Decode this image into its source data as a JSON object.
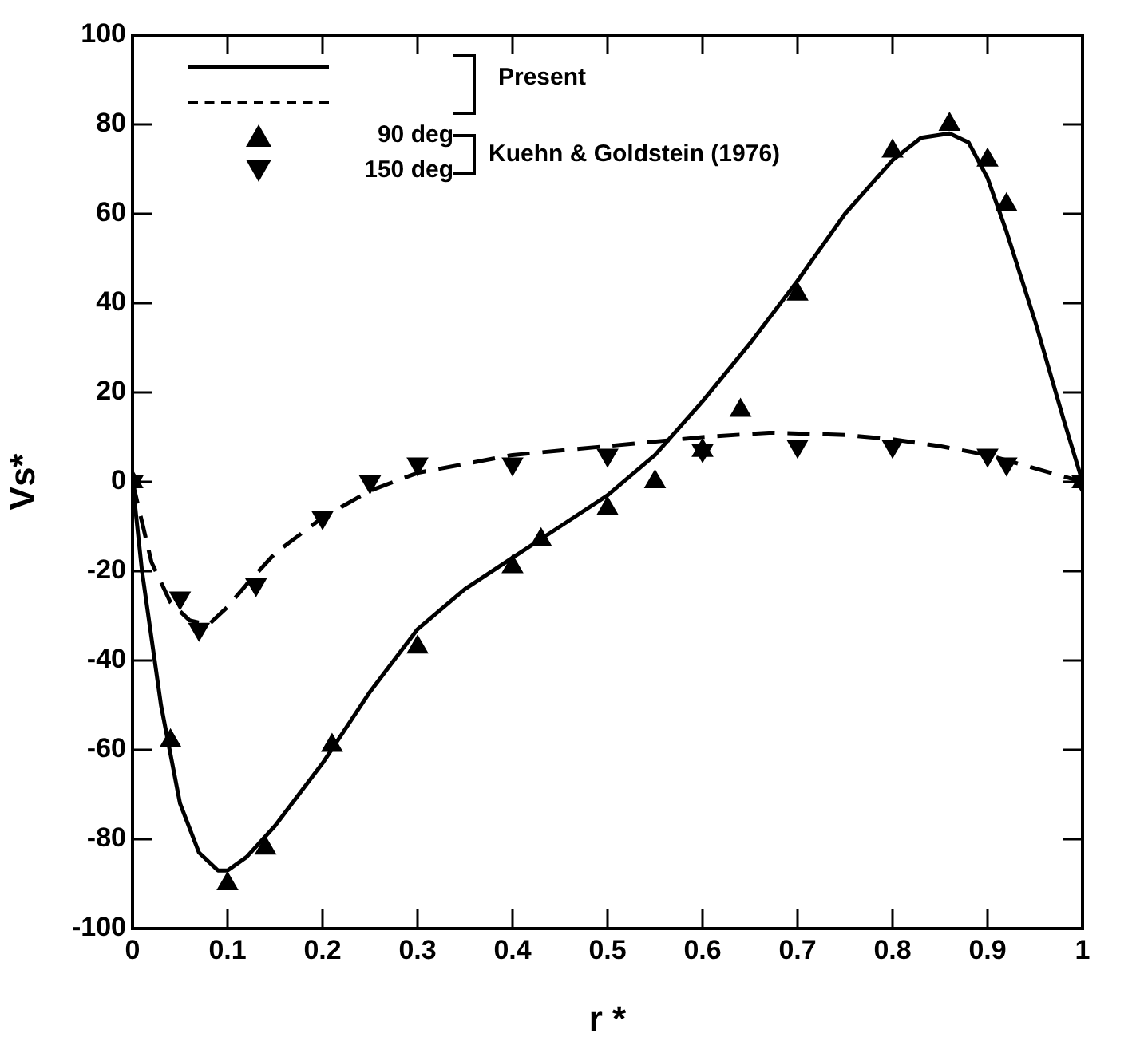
{
  "chart_data": {
    "type": "line",
    "xlabel": "r *",
    "ylabel": "Vs*",
    "xlim": [
      0,
      1
    ],
    "ylim": [
      -100,
      100
    ],
    "xticks": [
      0,
      0.1,
      0.2,
      0.3,
      0.4,
      0.5,
      0.6,
      0.7,
      0.8,
      0.9,
      1
    ],
    "yticks": [
      -100,
      -80,
      -60,
      -40,
      -20,
      0,
      20,
      40,
      60,
      80,
      100
    ],
    "grid": false,
    "legend": "top left",
    "annotations": [
      "Present",
      "Kuehn & Goldstein (1976)"
    ],
    "series": [
      {
        "line_style": "solid",
        "marker": "none",
        "color": "#000000",
        "x": [
          0,
          0.01,
          0.03,
          0.05,
          0.07,
          0.09,
          0.1,
          0.12,
          0.15,
          0.2,
          0.25,
          0.3,
          0.35,
          0.4,
          0.45,
          0.5,
          0.55,
          0.6,
          0.65,
          0.7,
          0.75,
          0.8,
          0.83,
          0.86,
          0.88,
          0.9,
          0.92,
          0.95,
          0.98,
          1
        ],
        "values": [
          0,
          -20,
          -50,
          -72,
          -83,
          -87,
          -87,
          -84,
          -77,
          -63,
          -47,
          -33,
          -24,
          -17,
          -10,
          -3,
          6,
          18,
          31,
          45,
          60,
          72,
          77,
          78,
          76,
          68,
          56,
          36,
          14,
          0
        ]
      },
      {
        "line_style": "dashed",
        "marker": "none",
        "color": "#000000",
        "x": [
          0,
          0.02,
          0.04,
          0.06,
          0.08,
          0.1,
          0.12,
          0.15,
          0.2,
          0.25,
          0.3,
          0.35,
          0.4,
          0.5,
          0.6,
          0.67,
          0.75,
          0.8,
          0.85,
          0.9,
          0.95,
          1
        ],
        "values": [
          0,
          -18,
          -27,
          -31,
          -32,
          -28,
          -23,
          -16,
          -8,
          -2,
          2,
          4,
          6,
          8,
          10,
          11,
          10.5,
          9.5,
          8,
          6,
          3,
          0
        ]
      },
      {
        "type": "scatter",
        "name": "90 deg",
        "marker": "triangle",
        "color": "#000000",
        "x": [
          0,
          0.04,
          0.1,
          0.14,
          0.21,
          0.3,
          0.4,
          0.43,
          0.5,
          0.55,
          0.6,
          0.64,
          0.7,
          0.8,
          0.86,
          0.9,
          0.92,
          1
        ],
        "values": [
          0,
          -58,
          -90,
          -82,
          -59,
          -37,
          -19,
          -13,
          -6,
          0,
          7,
          16,
          42,
          74,
          80,
          72,
          62,
          0
        ]
      },
      {
        "type": "scatter",
        "name": "150 deg",
        "marker": "triangle-down",
        "color": "#000000",
        "x": [
          0,
          0.05,
          0.07,
          0.13,
          0.2,
          0.25,
          0.3,
          0.4,
          0.5,
          0.6,
          0.7,
          0.8,
          0.9,
          0.92,
          1
        ],
        "values": [
          0,
          -26,
          -33,
          -23,
          -8,
          0,
          4,
          4,
          6,
          7,
          8,
          8,
          6,
          4,
          0
        ]
      }
    ]
  }
}
